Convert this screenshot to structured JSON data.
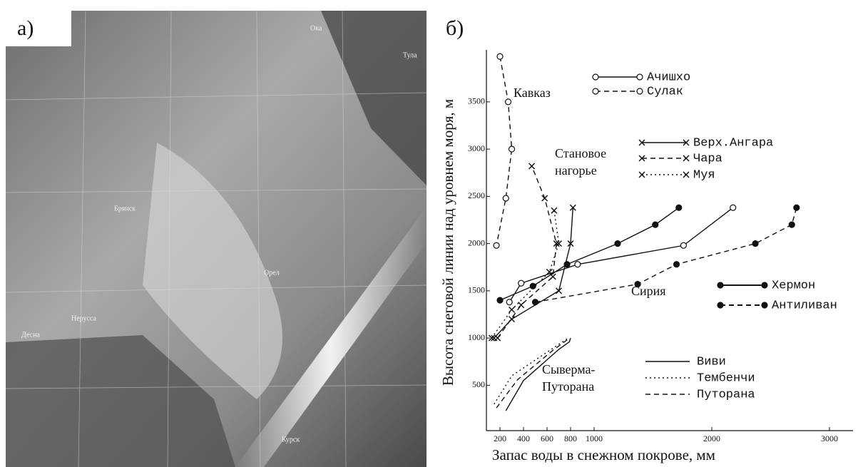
{
  "panel_a": {
    "label": "а)",
    "places": [
      "Ока",
      "Тула",
      "Брянск",
      "Орел",
      "Нерусса",
      "Десна",
      "Курск"
    ]
  },
  "chart_data": {
    "type": "line",
    "label": "б)",
    "x_label": "Запас воды в снежном покрове, мм",
    "y_label": "Высота снеговой линии над уровнем моря, м",
    "xlim": [
      0,
      3200
    ],
    "ylim": [
      50,
      4050
    ],
    "xticks": [
      200,
      400,
      600,
      800,
      1000,
      2000,
      3000
    ],
    "yticks": [
      500,
      1000,
      1500,
      2000,
      2500,
      3000,
      3500
    ],
    "regions": [
      {
        "lines": [
          "Кавказ"
        ]
      },
      {
        "lines": [
          "Становое",
          "нагорье"
        ]
      },
      {
        "lines": [
          "Сирия"
        ]
      },
      {
        "lines": [
          "Сыверма-",
          "Путорана"
        ]
      }
    ],
    "series": [
      {
        "name": "Ачишхо",
        "color": "#111111",
        "marker": "open",
        "dash": "solid",
        "x": [
          280,
          380,
          860,
          1760,
          2180
        ],
        "values": [
          1380,
          1580,
          1780,
          1980,
          2380
        ]
      },
      {
        "name": "Сулак",
        "color": "#111111",
        "marker": "open",
        "dash": "dashed",
        "x": [
          200,
          270,
          300,
          250,
          170
        ],
        "values": [
          3980,
          3500,
          3000,
          2480,
          1980
        ]
      },
      {
        "name": "Верх.Ангара",
        "color": "#111111",
        "marker": "x",
        "dash": "solid",
        "x": [
          150,
          300,
          700,
          800,
          820
        ],
        "values": [
          1000,
          1200,
          1500,
          2000,
          2380
        ]
      },
      {
        "name": "Чара",
        "color": "#111111",
        "marker": "x",
        "dash": "dashed",
        "x": [
          180,
          380,
          650,
          680,
          580,
          470
        ],
        "values": [
          1000,
          1350,
          1650,
          2000,
          2480,
          2820
        ]
      },
      {
        "name": "Муя",
        "color": "#111111",
        "marker": "x",
        "dash": "dotted",
        "x": [
          130,
          300,
          620,
          700,
          660
        ],
        "values": [
          1000,
          1300,
          1700,
          2000,
          2350
        ]
      },
      {
        "name": "Хермон",
        "color": "#111111",
        "marker": "filled",
        "dash": "solid",
        "x": [
          200,
          480,
          770,
          1200,
          1520,
          1720
        ],
        "values": [
          1400,
          1550,
          1780,
          2000,
          2200,
          2380
        ]
      },
      {
        "name": "Антиливан",
        "color": "#111111",
        "marker": "filled",
        "dash": "dashed",
        "x": [
          500,
          1370,
          1700,
          2370,
          2680,
          2720
        ],
        "values": [
          1380,
          1570,
          1780,
          2000,
          2200,
          2380
        ]
      },
      {
        "name": "Виви",
        "color": "#111111",
        "marker": "none",
        "dash": "solid",
        "x": [
          250,
          400,
          700,
          790,
          800
        ],
        "values": [
          230,
          550,
          880,
          960,
          1000
        ]
      },
      {
        "name": "Тембенчи",
        "color": "#111111",
        "marker": "none",
        "dash": "dotted",
        "x": [
          150,
          300,
          600,
          780
        ],
        "values": [
          300,
          600,
          850,
          1000
        ]
      },
      {
        "name": "Путорана",
        "color": "#111111",
        "marker": "none",
        "dash": "dashed",
        "x": [
          170,
          350,
          650,
          770
        ],
        "values": [
          260,
          560,
          870,
          980
        ]
      }
    ]
  }
}
